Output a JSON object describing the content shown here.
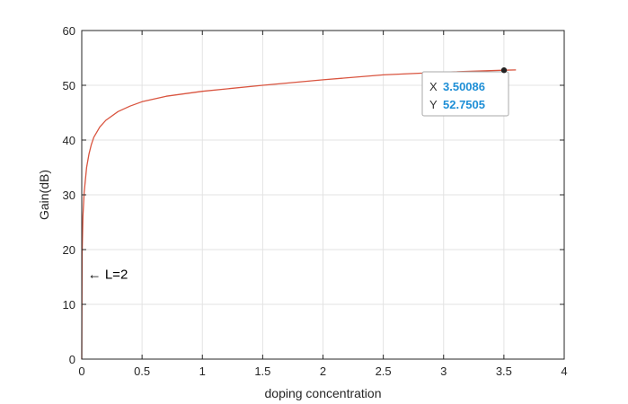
{
  "chart_data": {
    "type": "line",
    "title": "",
    "xlabel": "doping concentration",
    "ylabel": "Gain(dB)",
    "xlim": [
      0,
      4
    ],
    "ylim": [
      0,
      60
    ],
    "xticks": [
      "0",
      "0.5",
      "1",
      "1.5",
      "2",
      "2.5",
      "3",
      "3.5",
      "4"
    ],
    "yticks": [
      "0",
      "10",
      "20",
      "30",
      "40",
      "50",
      "60"
    ],
    "grid": true,
    "line_color": "#d9543f",
    "series": [
      {
        "x": [
          0.0,
          0.003,
          0.01,
          0.02,
          0.04,
          0.06,
          0.08,
          0.1,
          0.15,
          0.2,
          0.3,
          0.4,
          0.5,
          0.7,
          1.0,
          1.5,
          2.0,
          2.5,
          3.0,
          3.5,
          3.6
        ],
        "values": [
          0.0,
          19.0,
          26.0,
          30.5,
          35.0,
          37.5,
          39.2,
          40.5,
          42.4,
          43.6,
          45.2,
          46.2,
          47.0,
          48.0,
          48.9,
          50.0,
          51.0,
          51.9,
          52.4,
          52.75,
          52.8
        ]
      }
    ],
    "annotations": [
      {
        "text": "← L=2",
        "x": 0.02,
        "y": 15.5
      }
    ],
    "datatip": {
      "x_key": "X",
      "x_value": "3.50086",
      "y_key": "Y",
      "y_value": "52.7505",
      "point": [
        3.50086,
        52.7505
      ]
    }
  }
}
